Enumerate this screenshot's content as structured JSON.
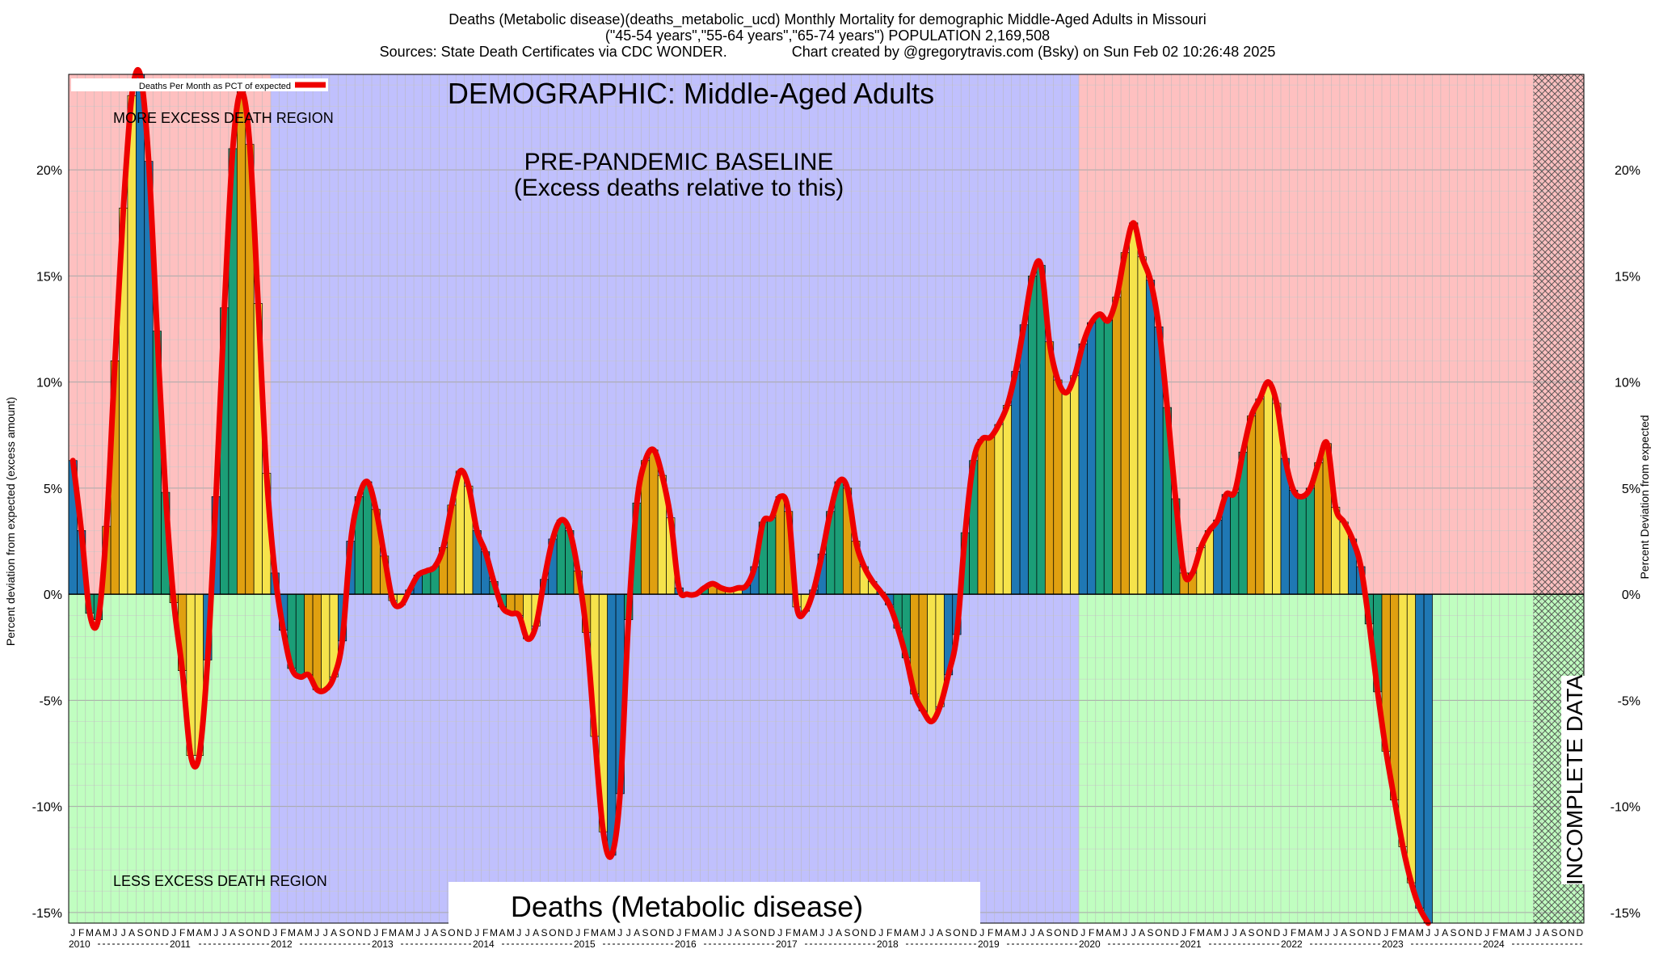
{
  "chart_data": {
    "type": "bar",
    "title_lines": [
      "Deaths (Metabolic disease)(deaths_metabolic_ucd) Monthly Mortality for demographic Middle-Aged Adults in Missouri",
      "(\"45-54 years\",\"55-64 years\",\"65-74 years\") POPULATION 2,169,508",
      "Sources: State Death Certificates via CDC WONDER.                Chart created by @gregorytravis.com (Bsky) on Sun Feb 02 10:26:48 2025"
    ],
    "ylabel_left": "Percent deviation from expected (excess amount)",
    "ylabel_right": "Percent Deviation from expected",
    "legend_label": "Deaths Per Month as PCT of expected",
    "legend_position": "top-left",
    "annotations": {
      "demographic": "DEMOGRAPHIC: Middle-Aged Adults",
      "baseline_line1": "PRE-PANDEMIC BASELINE",
      "baseline_line2": "(Excess deaths relative to this)",
      "more_excess": "MORE EXCESS DEATH REGION",
      "less_excess": "LESS EXCESS DEATH REGION",
      "incomplete": "INCOMPLETE DATA",
      "bottom_title": "Deaths (Metabolic disease)"
    },
    "ylim": [
      -15.5,
      24.5
    ],
    "yticks": [
      -15,
      -10,
      -5,
      0,
      5,
      10,
      15,
      20
    ],
    "ytick_labels": [
      "-15%",
      "-10%",
      "-5%",
      "0%",
      "5%",
      "10%",
      "15%",
      "20%"
    ],
    "grid": true,
    "month_letters": [
      "J",
      "F",
      "M",
      "A",
      "M",
      "J",
      "J",
      "A",
      "S",
      "O",
      "N",
      "D"
    ],
    "years": [
      "2010",
      "2011",
      "2012",
      "2013",
      "2014",
      "2015",
      "2016",
      "2017",
      "2018",
      "2019",
      "2020",
      "2021",
      "2022",
      "2023",
      "2024"
    ],
    "start": "2010-01",
    "baseline_period": [
      "2012-01",
      "2019-12"
    ],
    "incomplete_from": "2024-07",
    "colors": {
      "excess_region": "#fec0c0",
      "deficit_region": "#c0fec0",
      "baseline_region": "#c0c0fd",
      "line": "#ee0000",
      "bars": [
        "#1f78b4",
        "#1b9e77",
        "#e0a010",
        "#f6e34b"
      ]
    },
    "values": [
      6.3,
      3.0,
      -0.9,
      -1.2,
      3.2,
      11.0,
      18.2,
      23.5,
      24.5,
      20.4,
      12.4,
      4.8,
      -0.4,
      -3.6,
      -7.6,
      -7.6,
      -3.1,
      4.6,
      13.5,
      21.0,
      23.7,
      21.2,
      13.7,
      5.7,
      1.0,
      -1.7,
      -3.5,
      -3.9,
      -3.8,
      -4.5,
      -4.5,
      -3.9,
      -2.2,
      2.5,
      4.6,
      5.3,
      4.0,
      1.8,
      -0.3,
      -0.5,
      0.2,
      0.9,
      1.1,
      1.3,
      2.2,
      4.2,
      5.8,
      5.1,
      3.0,
      2.0,
      0.6,
      -0.6,
      -0.9,
      -1.0,
      -2.1,
      -1.5,
      0.7,
      2.6,
      3.5,
      3.0,
      1.1,
      -1.8,
      -6.7,
      -11.2,
      -12.3,
      -9.4,
      -1.2,
      4.3,
      6.3,
      6.8,
      5.6,
      3.6,
      0.3,
      0.0,
      0.0,
      0.3,
      0.5,
      0.3,
      0.2,
      0.3,
      0.4,
      1.3,
      3.4,
      3.6,
      4.6,
      3.9,
      -0.6,
      -0.8,
      0.2,
      1.9,
      3.9,
      5.3,
      5.0,
      2.5,
      1.3,
      0.6,
      0.1,
      -0.5,
      -1.6,
      -3.0,
      -4.7,
      -5.5,
      -6.0,
      -5.3,
      -3.8,
      -1.9,
      2.9,
      6.3,
      7.3,
      7.4,
      8.0,
      8.9,
      10.5,
      12.7,
      15.0,
      15.5,
      11.9,
      10.1,
      9.5,
      10.3,
      11.8,
      12.8,
      13.2,
      12.9,
      14.0,
      16.1,
      17.5,
      15.9,
      14.8,
      12.6,
      8.8,
      4.5,
      1.0,
      1.0,
      2.2,
      3.0,
      3.5,
      4.7,
      4.8,
      6.7,
      8.4,
      9.2,
      10.0,
      9.0,
      6.4,
      4.9,
      4.6,
      5.0,
      6.2,
      7.1,
      4.1,
      3.4,
      2.6,
      1.3,
      -1.4,
      -4.6,
      -7.4,
      -9.7,
      -11.9,
      -13.6,
      -14.8,
      -15.5
    ]
  }
}
